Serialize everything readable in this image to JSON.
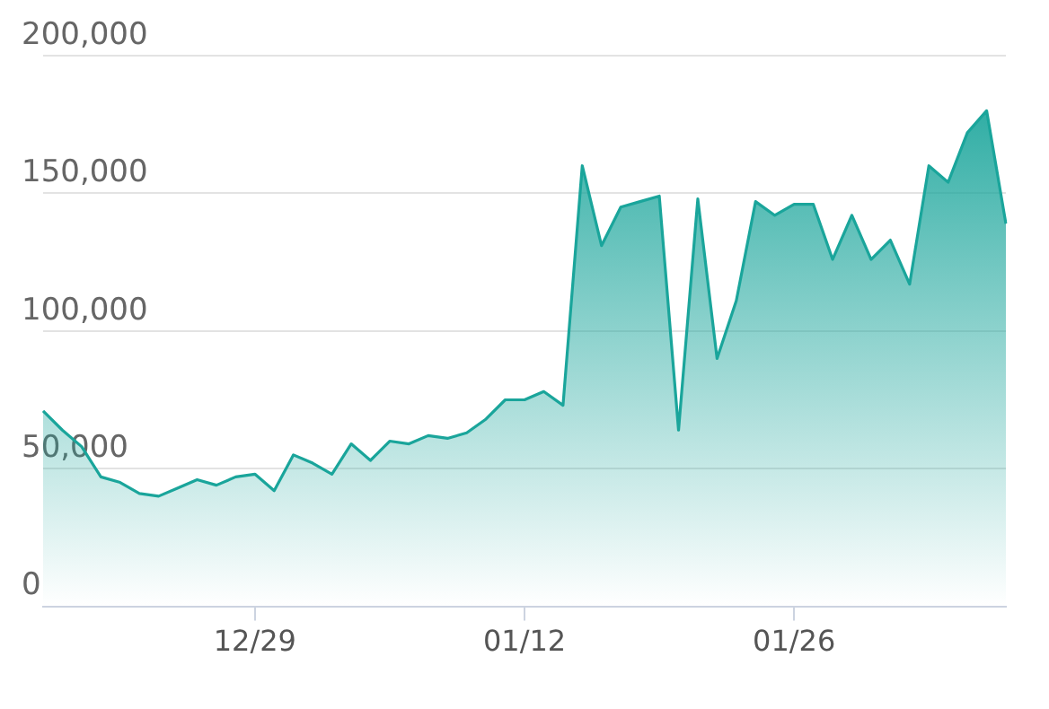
{
  "chart_data": {
    "type": "area",
    "categories": [
      null,
      null,
      null,
      null,
      null,
      null,
      null,
      null,
      null,
      null,
      null,
      "12/29",
      null,
      null,
      null,
      null,
      null,
      null,
      null,
      null,
      null,
      null,
      null,
      null,
      null,
      "01/12",
      null,
      null,
      null,
      null,
      null,
      null,
      null,
      null,
      null,
      null,
      null,
      null,
      null,
      "01/26",
      null,
      null,
      null,
      null,
      null,
      null,
      null,
      null,
      null,
      null,
      null
    ],
    "series": [
      {
        "color": "#1aa59b",
        "values": [
          71000,
          64000,
          58000,
          47000,
          45000,
          41000,
          40000,
          43000,
          46000,
          44000,
          47000,
          48000,
          42000,
          55000,
          52000,
          48000,
          59000,
          53000,
          60000,
          59000,
          62000,
          61000,
          63000,
          68000,
          75000,
          75000,
          78000,
          73000,
          160000,
          131000,
          145000,
          147000,
          149000,
          64000,
          148000,
          90000,
          111000,
          147000,
          142000,
          146000,
          146000,
          126000,
          142000,
          126000,
          133000,
          117000,
          160000,
          154000,
          172000,
          180000,
          139000
        ]
      }
    ],
    "ylim": [
      0,
      200000
    ],
    "yticks": [
      {
        "value": 0,
        "label": "0"
      },
      {
        "value": 50000,
        "label": "50,000"
      },
      {
        "value": 100000,
        "label": "100,000"
      },
      {
        "value": 150000,
        "label": "150,000"
      },
      {
        "value": 200000,
        "label": "200,000"
      }
    ],
    "grid": "y",
    "marker": "none",
    "legend": false
  }
}
